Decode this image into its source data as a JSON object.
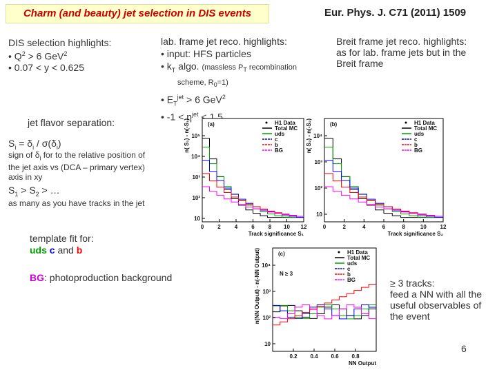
{
  "header": {
    "title": "Charm (and beauty) jet selection in DIS events",
    "reference": "Eur. Phys. J. C71 (2011) 1509"
  },
  "dis": {
    "heading": "DIS selection highlights:",
    "q2": [
      "• Q",
      "2",
      " > 6 GeV",
      "2"
    ],
    "y": "• 0.07 < y < 0.625"
  },
  "lab": {
    "heading": "lab. frame jet reco. highlights:",
    "input": "• input: HFS particles",
    "kt": [
      "• k",
      "T",
      " algo. ",
      "(massless P",
      "T",
      " recombination"
    ],
    "scheme": [
      "scheme, R",
      "0",
      "=1)"
    ],
    "et": [
      "• E",
      "T",
      "jet",
      " > 6 GeV",
      "2"
    ],
    "eta": [
      "• -1 < η",
      "jet",
      " < 1.5"
    ]
  },
  "breit": {
    "heading": "Breit frame jet reco. highlights:",
    "body": [
      "as for lab. frame jets but in the",
      "Breit frame"
    ]
  },
  "flavor": {
    "heading": "jet flavor separation:",
    "significance": [
      "S",
      "i",
      " = δ",
      "i",
      " / σ(δ",
      "i",
      ")"
    ],
    "sign": [
      "sign of δ",
      "i",
      " for to the relative position of"
    ],
    "sign_rest": [
      "the jet axis vs (DCA – primary vertex)",
      "axis in xy"
    ],
    "order": [
      "S",
      "1",
      " > S",
      "2",
      " > …"
    ],
    "tracks": "as many as you have tracks in the jet"
  },
  "fit": {
    "heading": "template fit for:",
    "uds": "uds",
    "c": "c",
    "and": "and",
    "b": "b",
    "bg": "BG",
    "bg_text": ": photoproduction background"
  },
  "nn": [
    "≥ 3 tracks:",
    "feed a NN with all the",
    "useful observables of",
    "the event"
  ],
  "page_number": "6",
  "legend": {
    "entries": [
      "H1 Data",
      "Total MC",
      "uds",
      "c",
      "b",
      "BG"
    ],
    "colors": [
      "#000000",
      "#000000",
      "#00a000",
      "#0000ff",
      "#ff0000",
      "#ff00ff"
    ]
  },
  "plots": [
    {
      "panel": "(a)",
      "x_title": "Track significance S₁",
      "y_title": "n( S₁) - n(-S₁)",
      "xticks": [
        "0",
        "2",
        "4",
        "6",
        "8",
        "10",
        "12"
      ],
      "yticks": [
        "10⁵",
        "10⁴",
        "10³",
        "10²",
        "10"
      ]
    },
    {
      "panel": "(b)",
      "x_title": "Track significance S₂",
      "y_title": "n( S₂) - n(-S₂)",
      "xticks": [
        "0",
        "2",
        "4",
        "6",
        "8",
        "10",
        "12"
      ],
      "yticks": [
        "10⁴",
        "10³",
        "10²",
        "10"
      ]
    },
    {
      "panel": "(c)",
      "x_title": "NN Output",
      "y_title": "n(NN Output) - n(-NN Output)",
      "xticks": [
        "0.2",
        "0.4",
        "0.6",
        "0.8"
      ],
      "yticks": [
        "10⁴",
        "10³",
        "10²",
        "10"
      ],
      "note": "N ≥ 3"
    }
  ]
}
